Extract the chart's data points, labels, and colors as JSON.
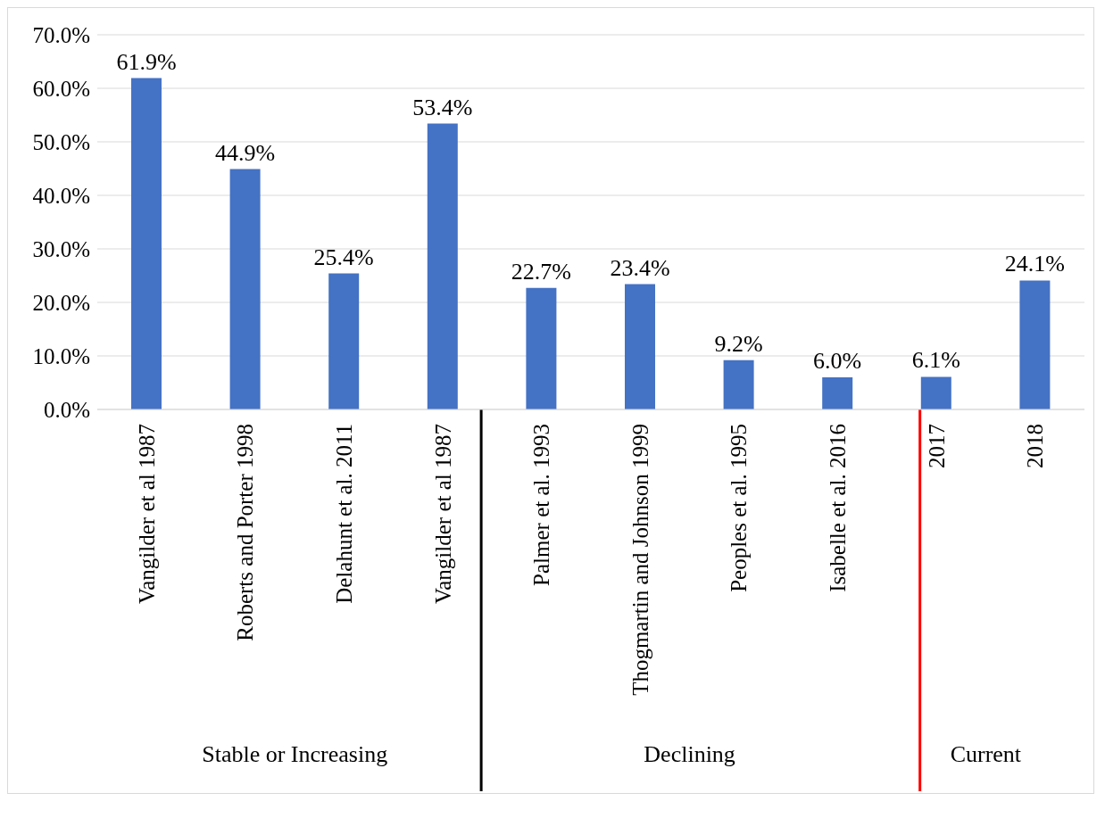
{
  "chart_data": {
    "type": "bar",
    "categories": [
      "Vangilder et al 1987",
      "Roberts and Porter 1998",
      "Delahunt et al. 2011",
      "Vangilder et al 1987",
      "Palmer et al. 1993",
      "Thogmartin and Johnson 1999",
      "Peoples et al. 1995",
      "Isabelle et al. 2016",
      "2017",
      "2018"
    ],
    "values": [
      61.9,
      44.9,
      25.4,
      53.4,
      22.7,
      23.4,
      9.2,
      6.0,
      6.1,
      24.1
    ],
    "value_labels": [
      "61.9%",
      "44.9%",
      "25.4%",
      "53.4%",
      "22.7%",
      "23.4%",
      "9.2%",
      "6.0%",
      "6.1%",
      "24.1%"
    ],
    "color": "#4472c4",
    "ylim": [
      0,
      70
    ],
    "yticks": [
      {
        "value": 0,
        "label": "0.0%"
      },
      {
        "value": 10,
        "label": "10.0%"
      },
      {
        "value": 20,
        "label": "20.0%"
      },
      {
        "value": 30,
        "label": "30.0%"
      },
      {
        "value": 40,
        "label": "40.0%"
      },
      {
        "value": 50,
        "label": "50.0%"
      },
      {
        "value": 60,
        "label": "60.0%"
      },
      {
        "value": 70,
        "label": "70.0%"
      }
    ],
    "grid": "y",
    "legend": false,
    "annotations": [
      "Stable or Increasing",
      "Declining",
      "Current"
    ]
  }
}
